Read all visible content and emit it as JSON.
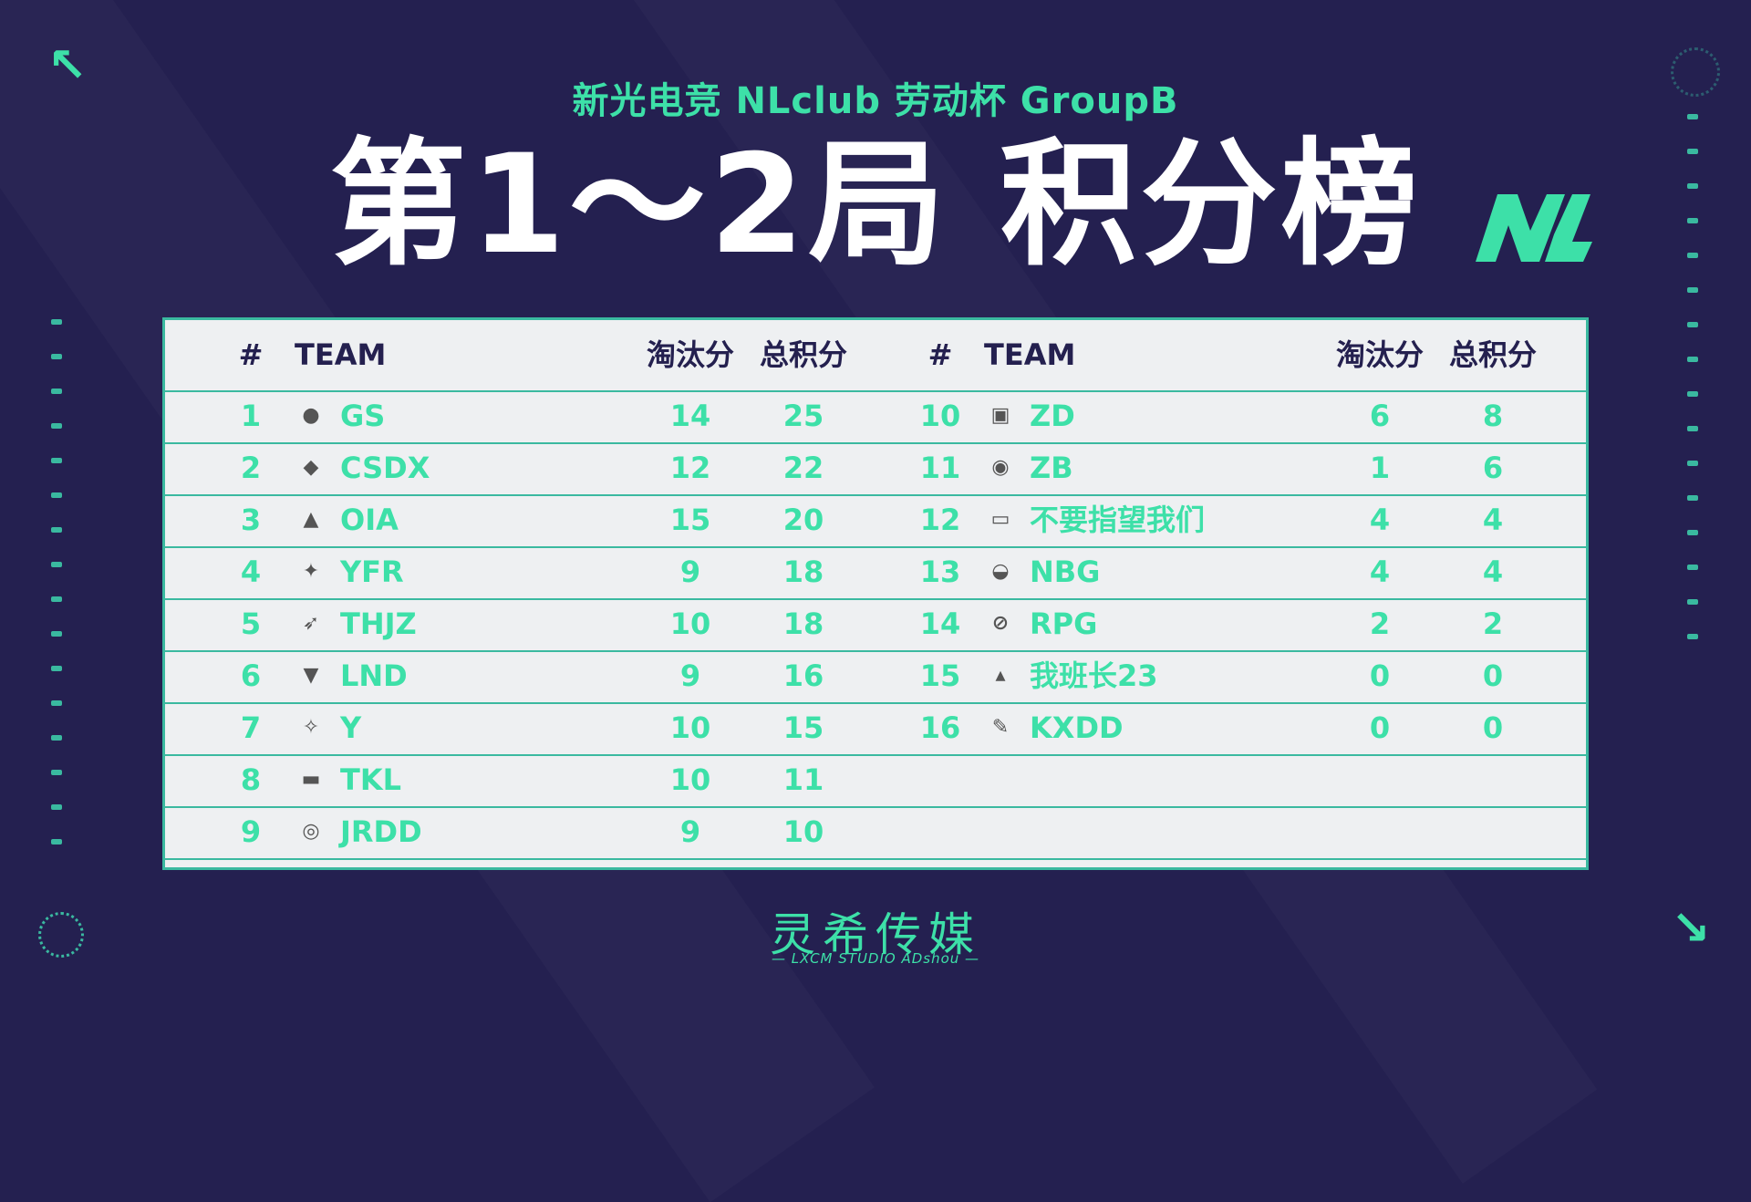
{
  "header": {
    "subtitle": "新光电竞 NLclub 劳动杯 GroupB",
    "title": "第1～2局 积分榜",
    "logo_text": "NL"
  },
  "table": {
    "columns": [
      "#",
      "TEAM",
      "淘汰分",
      "总积分"
    ],
    "left": [
      {
        "rank": "1",
        "team": "GS",
        "kills": "14",
        "total": "25",
        "icon": "gs-logo-icon"
      },
      {
        "rank": "2",
        "team": "CSDX",
        "kills": "12",
        "total": "22",
        "icon": "csdx-logo-icon"
      },
      {
        "rank": "3",
        "team": "OIA",
        "kills": "15",
        "total": "20",
        "icon": "oia-logo-icon"
      },
      {
        "rank": "4",
        "team": "YFR",
        "kills": "9",
        "total": "18",
        "icon": "yfr-logo-icon"
      },
      {
        "rank": "5",
        "team": "THJZ",
        "kills": "10",
        "total": "18",
        "icon": "thjz-logo-icon"
      },
      {
        "rank": "6",
        "team": "LND",
        "kills": "9",
        "total": "16",
        "icon": "lnd-club-logo-icon"
      },
      {
        "rank": "7",
        "team": "Y",
        "kills": "10",
        "total": "15",
        "icon": "y-logo-icon"
      },
      {
        "rank": "8",
        "team": "TKL",
        "kills": "10",
        "total": "11",
        "icon": "tkl-logo-icon"
      },
      {
        "rank": "9",
        "team": "JRDD",
        "kills": "9",
        "total": "10",
        "icon": "jrdd-logo-icon"
      }
    ],
    "right": [
      {
        "rank": "10",
        "team": "ZD",
        "kills": "6",
        "total": "8",
        "icon": "zd-logo-icon"
      },
      {
        "rank": "11",
        "team": "ZB",
        "kills": "1",
        "total": "6",
        "icon": "zb-panda-logo-icon"
      },
      {
        "rank": "12",
        "team": "不要指望我们",
        "kills": "4",
        "total": "4",
        "icon": "bzyw-logo-icon"
      },
      {
        "rank": "13",
        "team": "NBG",
        "kills": "4",
        "total": "4",
        "icon": "nbg-logo-icon"
      },
      {
        "rank": "14",
        "team": "RPG",
        "kills": "2",
        "total": "2",
        "icon": "rpg-logo-icon"
      },
      {
        "rank": "15",
        "team": "我班长23",
        "kills": "0",
        "total": "0",
        "icon": "wbz23-logo-icon"
      },
      {
        "rank": "16",
        "team": "KXDD",
        "kills": "0",
        "total": "0",
        "icon": "kxdd-logo-icon"
      }
    ]
  },
  "footer": {
    "brand": "灵希传媒",
    "sub": "— LXCM STUDIO ADshou —"
  },
  "colors": {
    "background": "#242050",
    "accent": "#3de0a8",
    "board": "#eef0f2",
    "header_text": "#24204f"
  }
}
